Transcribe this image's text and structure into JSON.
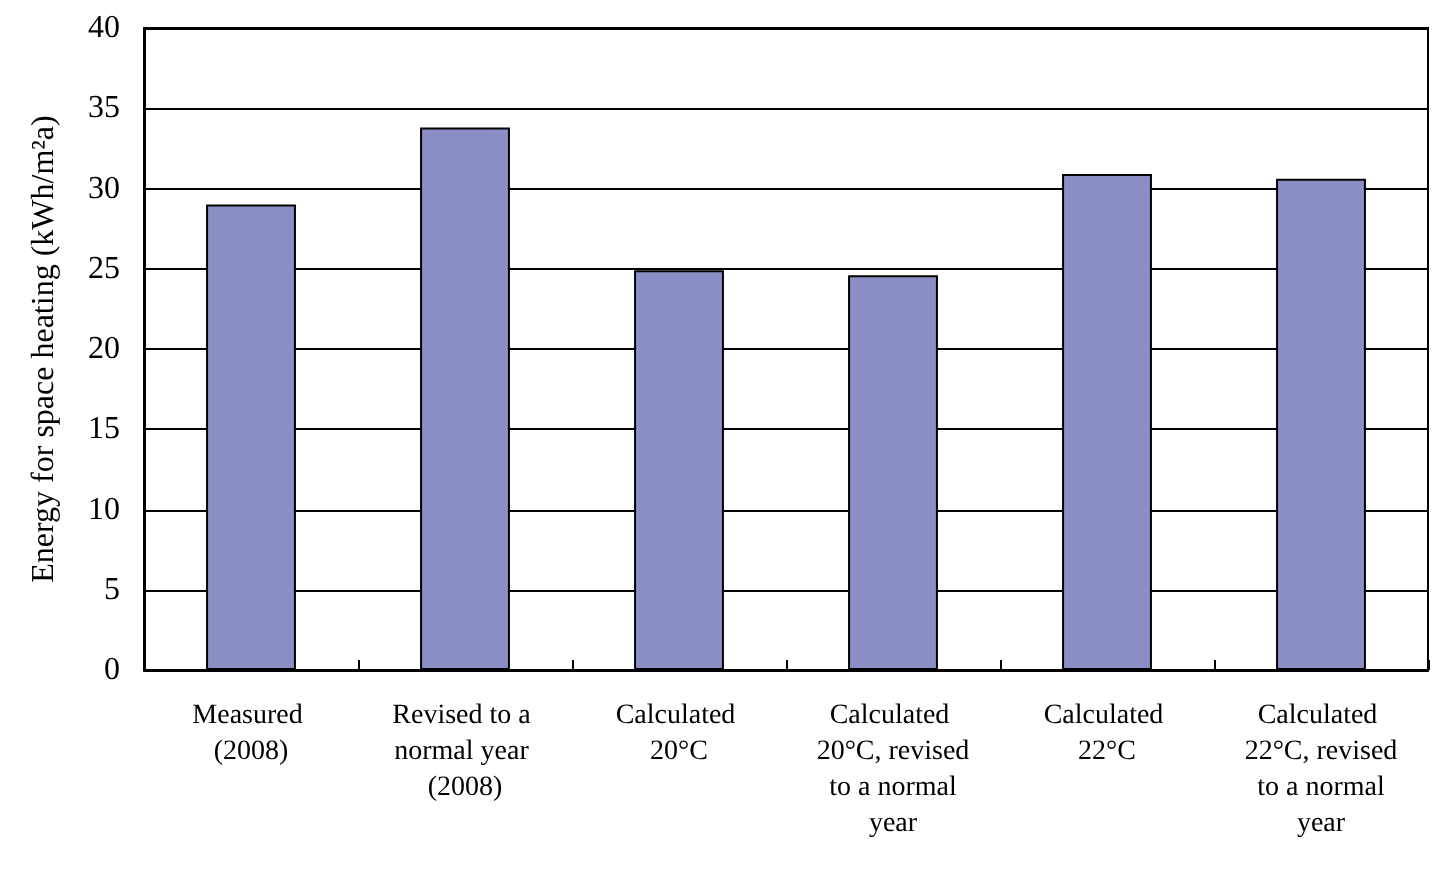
{
  "chart_data": {
    "type": "bar",
    "ylabel": "Energy for space heating (kWh/m²a)",
    "categories": [
      "Measured (2008)",
      "Revised to a normal year (2008)",
      "Calculated 20°C",
      "Calculated 20°C, revised to a normal year",
      "Calculated 22°C",
      "Calculated 22°C, revised to a normal year"
    ],
    "values": [
      29.0,
      33.8,
      24.9,
      24.6,
      30.9,
      30.6
    ],
    "color": "#8b8fc6",
    "ylim": [
      0,
      40
    ],
    "yticks": [
      0,
      5,
      10,
      15,
      20,
      25,
      30,
      35,
      40
    ],
    "grid": "y"
  }
}
